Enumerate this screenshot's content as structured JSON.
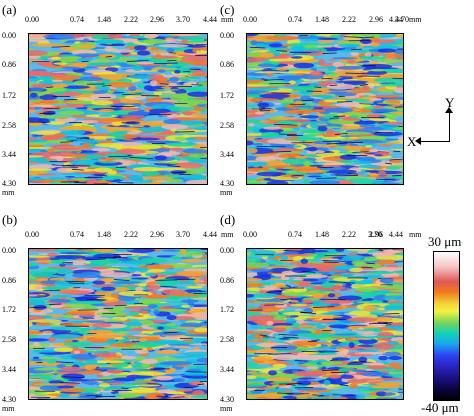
{
  "panels": [
    {
      "label": "(a)",
      "unit": "mm",
      "x_ticks": [
        "0.00",
        "0.74",
        "1.48",
        "2.22",
        "2.96",
        "3.70",
        "4.44"
      ],
      "y_ticks": [
        "0.00",
        "0.86",
        "1.72",
        "2.58",
        "3.44",
        "4.30"
      ]
    },
    {
      "label": "(c)",
      "unit": "mm",
      "x_ticks": [
        "0.00",
        "0.74",
        "1.48",
        "2.22",
        "2.96",
        "3.70",
        "4.44"
      ],
      "y_ticks": [
        "0.00",
        "0.86",
        "1.72",
        "2.58",
        "3.44",
        "4.30"
      ]
    },
    {
      "label": "(b)",
      "unit": "mm",
      "x_ticks": [
        "0.00",
        "0.74",
        "1.48",
        "2.22",
        "2.96",
        "3.70",
        "4.44"
      ],
      "y_ticks": [
        "0.00",
        "0.86",
        "1.72",
        "2.58",
        "3.44",
        "4.30"
      ]
    },
    {
      "label": "(d)",
      "unit": "mm",
      "x_ticks": [
        "0.00",
        "0.74",
        "1.48",
        "2.22",
        "2.96",
        "3.70",
        "4.44"
      ],
      "y_ticks": [
        "0.00",
        "0.86",
        "1.72",
        "2.58",
        "3.44",
        "4.30"
      ]
    }
  ],
  "axes_indicator": {
    "y_label": "Y",
    "x_label": "X"
  },
  "color_scale": {
    "max_label": "30 μm",
    "min_label": "-40 μm"
  },
  "colors": [
    "#1a31e0",
    "#2e7df0",
    "#11bfe0",
    "#17d6a0",
    "#7bd84a",
    "#e8e63a",
    "#f5a531",
    "#f27a28",
    "#e96a6a",
    "#f0b7b0"
  ]
}
